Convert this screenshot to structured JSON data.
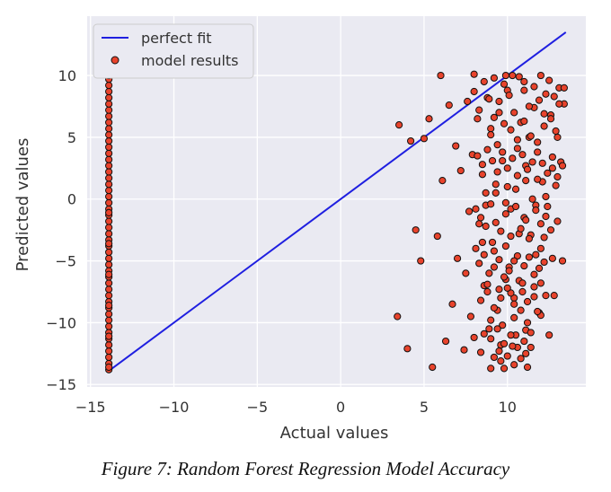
{
  "chart_data": {
    "type": "scatter",
    "title": "",
    "xlabel": "Actual values",
    "ylabel": "Predicted values",
    "xlim": [
      -15.2,
      14.7
    ],
    "ylim": [
      -15.2,
      14.8
    ],
    "xticks": [
      -15,
      -10,
      -5,
      0,
      5,
      10
    ],
    "yticks": [
      -15,
      -10,
      -5,
      0,
      5,
      10
    ],
    "grid": true,
    "legend_position": "top-left",
    "perfect_fit": {
      "name": "perfect fit",
      "x": [
        -13.9,
        13.5
      ],
      "y": [
        -13.9,
        13.5
      ],
      "color": "#1f1fe0"
    },
    "model_results": {
      "name": "model results",
      "fill_color": "#e8432c",
      "edge_color": "#111111",
      "x": [
        -13.9,
        -13.9,
        -13.9,
        -13.9,
        -13.9,
        -13.9,
        -13.9,
        -13.9,
        -13.9,
        -13.9,
        -13.9,
        -13.9,
        -13.9,
        -13.9,
        -13.9,
        -13.9,
        -13.9,
        -13.9,
        -13.9,
        -13.9,
        -13.9,
        -13.9,
        -13.9,
        -13.9,
        -13.9,
        -13.9,
        -13.9,
        -13.9,
        -13.9,
        -13.9,
        -13.9,
        -13.9,
        -13.9,
        -13.9,
        -13.9,
        -13.9,
        -13.9,
        -13.9,
        -13.9,
        -13.9,
        -13.9,
        -13.9,
        -13.9,
        -13.9,
        -13.9,
        -13.9,
        -13.9,
        -13.9,
        -13.9,
        -13.9,
        -13.9,
        -13.9,
        -13.9,
        -13.9,
        -13.9,
        3.4,
        3.5,
        4.0,
        4.2,
        4.5,
        4.8,
        5.0,
        5.3,
        5.5,
        5.8,
        6.0,
        6.1,
        6.3,
        6.5,
        6.7,
        6.9,
        7.0,
        7.2,
        7.4,
        7.5,
        7.6,
        7.7,
        7.8,
        7.9,
        8.0,
        8.0,
        8.1,
        8.2,
        8.3,
        8.4,
        8.5,
        8.6,
        8.7,
        8.8,
        8.9,
        9.0,
        9.0,
        9.1,
        9.2,
        9.3,
        9.4,
        9.5,
        9.6,
        9.7,
        9.8,
        9.9,
        10.0,
        10.0,
        10.1,
        10.2,
        10.3,
        10.4,
        10.5,
        10.6,
        10.7,
        10.8,
        10.9,
        11.0,
        11.0,
        11.1,
        11.2,
        11.3,
        11.4,
        11.5,
        11.6,
        11.7,
        11.8,
        11.9,
        12.0,
        12.0,
        12.1,
        12.2,
        12.3,
        12.4,
        12.5,
        12.6,
        12.7,
        12.8,
        12.9,
        13.0,
        13.1,
        13.2,
        13.3,
        13.4,
        8.0,
        8.3,
        8.6,
        8.9,
        9.2,
        9.5,
        9.8,
        10.1,
        10.4,
        10.7,
        11.0,
        11.3,
        11.6,
        11.9,
        12.2,
        12.5,
        12.8,
        13.1,
        13.4,
        9.0,
        9.4,
        9.8,
        10.2,
        10.6,
        11.0,
        11.4,
        11.8,
        12.2,
        12.6,
        13.0,
        8.2,
        8.5,
        8.8,
        9.1,
        9.4,
        9.7,
        10.0,
        10.3,
        10.6,
        10.9,
        11.2,
        11.5,
        11.8,
        12.1,
        12.4,
        12.7,
        13.0,
        13.3,
        8.7,
        9.3,
        9.9,
        10.5,
        11.1,
        11.7,
        12.3,
        12.9,
        8.1,
        8.4,
        8.7,
        9.0,
        9.3,
        9.6,
        9.9,
        10.2,
        10.5,
        10.8,
        11.1,
        11.4,
        11.7,
        12.0,
        12.3,
        12.6,
        8.5,
        9.2,
        9.9,
        10.6,
        11.3,
        12.0,
        12.7,
        8.3,
        8.6,
        8.9,
        9.2,
        9.5,
        9.8,
        10.1,
        10.4,
        10.7,
        11.0,
        11.3,
        11.6,
        11.9,
        12.2,
        8.8,
        9.5,
        10.2,
        10.9,
        11.6,
        12.3,
        8.4,
        8.8,
        9.2,
        9.6,
        10.0,
        10.4,
        10.8,
        11.2,
        11.6,
        12.0,
        9.0,
        9.7,
        10.4,
        11.1,
        11.8,
        8.6,
        9.0,
        9.4,
        9.8,
        10.2,
        10.6,
        11.0,
        11.4,
        9.5,
        10.3,
        11.1,
        9.2,
        9.6,
        10.0,
        10.4,
        10.8,
        11.2,
        9.9
      ],
      "y": [
        -13.8,
        -13.3,
        -12.8,
        -12.3,
        -11.8,
        -11.3,
        -10.8,
        -10.3,
        -9.8,
        -9.3,
        -8.8,
        -8.3,
        -7.8,
        -7.3,
        -6.8,
        -6.3,
        -5.8,
        -5.3,
        -4.8,
        -4.3,
        -3.8,
        -3.3,
        -2.8,
        -2.3,
        -1.8,
        -1.3,
        -0.8,
        -0.3,
        0.2,
        0.7,
        1.2,
        1.7,
        2.2,
        2.7,
        3.2,
        3.7,
        4.2,
        4.7,
        5.2,
        5.7,
        6.2,
        6.7,
        7.2,
        7.7,
        8.2,
        8.7,
        9.2,
        9.7,
        10.0,
        -13.6,
        -11.1,
        -8.6,
        -6.1,
        -3.6,
        -1.1,
        -9.5,
        6.0,
        -12.1,
        4.7,
        -2.5,
        -5.0,
        4.9,
        6.5,
        -13.6,
        -3.0,
        10.0,
        1.5,
        -11.5,
        7.6,
        -8.5,
        4.3,
        -4.8,
        2.3,
        -12.2,
        -6.0,
        7.9,
        -1.0,
        -9.5,
        3.6,
        10.1,
        -11.2,
        -4.0,
        6.5,
        -2.0,
        -12.4,
        2.0,
        -7.0,
        -0.5,
        8.2,
        -10.5,
        -13.7,
        5.7,
        -3.5,
        9.8,
        0.5,
        -9.0,
        7.0,
        -11.8,
        3.1,
        -13.7,
        -6.5,
        1.0,
        8.8,
        -5.5,
        -0.8,
        10.0,
        -8.0,
        -11.0,
        4.1,
        -2.8,
        6.2,
        -7.5,
        9.5,
        -1.5,
        2.7,
        -10.0,
        5.0,
        -12.0,
        0.0,
        7.4,
        -4.5,
        3.8,
        -9.2,
        10.0,
        -6.8,
        1.4,
        -3.1,
        8.5,
        -0.6,
        -11.0,
        6.8,
        2.5,
        -7.8,
        5.5,
        -1.8,
        9.0,
        3.0,
        -5.0,
        7.7,
        8.7,
        7.2,
        9.5,
        8.1,
        6.6,
        7.9,
        9.3,
        8.4,
        7.0,
        9.9,
        8.8,
        7.5,
        9.1,
        8.0,
        6.9,
        9.6,
        8.3,
        7.7,
        9.0,
        5.2,
        4.4,
        6.1,
        5.6,
        4.8,
        6.3,
        5.1,
        4.6,
        5.9,
        6.5,
        5.0,
        3.5,
        2.8,
        4.0,
        3.1,
        2.2,
        3.8,
        2.5,
        3.3,
        1.9,
        3.6,
        2.4,
        3.0,
        1.6,
        2.9,
        2.1,
        3.4,
        1.8,
        2.7,
        0.5,
        1.2,
        -0.3,
        0.8,
        1.5,
        -0.5,
        0.2,
        1.1,
        -0.8,
        -1.5,
        -2.2,
        -0.4,
        -1.9,
        -2.6,
        -1.2,
        -3.0,
        -0.6,
        -2.4,
        -1.7,
        -2.9,
        -0.9,
        -2.0,
        -1.4,
        -2.5,
        -3.5,
        -4.2,
        -3.8,
        -4.6,
        -3.2,
        -4.0,
        -4.8,
        -5.2,
        -4.5,
        -6.0,
        -5.5,
        -4.9,
        -6.3,
        -5.8,
        -5.0,
        -6.6,
        -5.4,
        -4.7,
        -6.1,
        -5.6,
        -5.1,
        -6.9,
        -7.3,
        -7.6,
        -6.8,
        -7.1,
        -7.8,
        -8.2,
        -7.5,
        -8.8,
        -8.0,
        -7.2,
        -8.5,
        -9.0,
        -8.3,
        -7.9,
        -9.4,
        -9.8,
        -10.2,
        -9.6,
        -10.6,
        -9.1,
        -10.9,
        -11.3,
        -10.5,
        -11.7,
        -11.0,
        -12.0,
        -11.5,
        -10.8,
        -12.3,
        -11.9,
        -12.5,
        -12.8,
        -13.1,
        -12.7,
        -13.4,
        -12.9,
        -13.6,
        10.0
      ]
    }
  }
}
